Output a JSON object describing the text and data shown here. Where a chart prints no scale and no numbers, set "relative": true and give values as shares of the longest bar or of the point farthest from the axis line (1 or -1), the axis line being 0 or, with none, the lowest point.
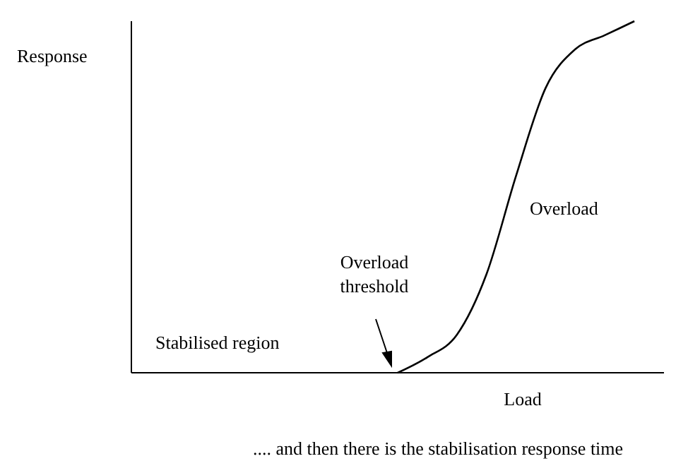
{
  "chart_data": {
    "type": "line",
    "relative": true,
    "ylabel": "Response",
    "xlabel": "Load",
    "categories": [
      null,
      null,
      null,
      null,
      null,
      null,
      null,
      null,
      null,
      null,
      null,
      null,
      null,
      null,
      null,
      null,
      null,
      null,
      null
    ],
    "series": [
      {
        "color": "#000000",
        "values": [
          null,
          null,
          null,
          null,
          null,
          null,
          null,
          null,
          null,
          0,
          0.044,
          0.108,
          0.28,
          0.56,
          0.81,
          0.92,
          0.96,
          1,
          null
        ]
      }
    ],
    "annotations": [
      "Stabilised region",
      "Overload threshold",
      "Overload",
      ".... and then there is the stabilisation response time"
    ],
    "marker": "none",
    "line_style": "solid",
    "grid": false
  }
}
